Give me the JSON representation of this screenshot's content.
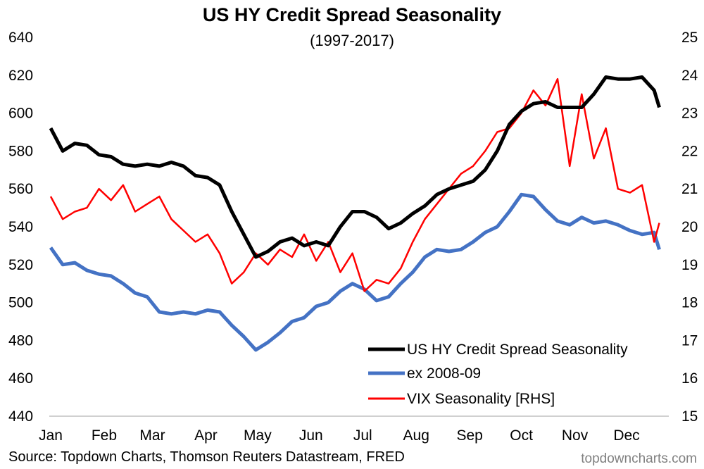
{
  "chart_data": {
    "type": "line",
    "title": "US HY Credit Spread Seasonality",
    "subtitle": "(1997-2017)",
    "source": "Source: Topdown Charts, Thomson Reuters Datastream, FRED",
    "watermark": "topdowncharts.com",
    "x_tick_labels": [
      "Jan",
      "Feb",
      "Mar",
      "Apr",
      "May",
      "Jun",
      "Jul",
      "Aug",
      "Sep",
      "Oct",
      "Nov",
      "Dec"
    ],
    "y_left": {
      "range": [
        440,
        640
      ],
      "ticks": [
        "440",
        "460",
        "480",
        "500",
        "520",
        "540",
        "560",
        "580",
        "600",
        "620",
        "640"
      ]
    },
    "y_right": {
      "range": [
        15,
        25
      ],
      "ticks": [
        "15",
        "16",
        "17",
        "18",
        "19",
        "20",
        "21",
        "22",
        "23",
        "24",
        "25"
      ]
    },
    "grid": false,
    "legend_placement": "bottom-right",
    "x": [
      "01-01",
      "01-08",
      "01-15",
      "01-22",
      "01-29",
      "02-05",
      "02-12",
      "02-19",
      "02-26",
      "03-05",
      "03-12",
      "03-19",
      "03-26",
      "04-02",
      "04-09",
      "04-16",
      "04-23",
      "04-30",
      "05-07",
      "05-14",
      "05-21",
      "05-28",
      "06-04",
      "06-11",
      "06-18",
      "06-25",
      "07-02",
      "07-09",
      "07-16",
      "07-23",
      "07-30",
      "08-06",
      "08-13",
      "08-20",
      "08-27",
      "09-03",
      "09-10",
      "09-17",
      "09-24",
      "10-01",
      "10-08",
      "10-15",
      "10-22",
      "10-29",
      "11-05",
      "11-12",
      "11-19",
      "11-26",
      "12-03",
      "12-10",
      "12-17",
      "12-20"
    ],
    "series": [
      {
        "name": "US HY Credit Spread Seasonality",
        "axis": "left",
        "color": "#000000",
        "values": [
          592,
          580,
          584,
          583,
          578,
          577,
          573,
          572,
          573,
          572,
          574,
          572,
          567,
          566,
          562,
          548,
          536,
          524,
          527,
          532,
          534,
          530,
          532,
          530,
          540,
          548,
          548,
          545,
          539,
          542,
          547,
          551,
          557,
          560,
          562,
          564,
          570,
          580,
          594,
          601,
          605,
          606,
          603,
          603,
          603,
          610,
          619,
          618,
          618,
          619,
          612,
          603
        ]
      },
      {
        "name": "ex 2008-09",
        "axis": "left",
        "color": "#4472C4",
        "values": [
          529,
          520,
          521,
          517,
          515,
          514,
          510,
          505,
          503,
          495,
          494,
          495,
          494,
          496,
          495,
          488,
          482,
          475,
          479,
          484,
          490,
          492,
          498,
          500,
          506,
          510,
          507,
          501,
          503,
          510,
          516,
          524,
          528,
          527,
          528,
          532,
          537,
          540,
          548,
          557,
          556,
          549,
          543,
          541,
          545,
          542,
          543,
          541,
          538,
          536,
          537,
          528
        ]
      },
      {
        "name": "VIX Seasonality [RHS]",
        "axis": "right",
        "color": "#FF0000",
        "values": [
          20.8,
          20.2,
          20.4,
          20.5,
          21.0,
          20.7,
          21.1,
          20.4,
          20.6,
          20.8,
          20.2,
          19.9,
          19.6,
          19.8,
          19.3,
          18.5,
          18.8,
          19.3,
          19.0,
          19.4,
          19.2,
          19.8,
          19.1,
          19.6,
          18.8,
          19.3,
          18.3,
          18.6,
          18.5,
          18.9,
          19.6,
          20.2,
          20.6,
          21.0,
          21.4,
          21.6,
          22.0,
          22.5,
          22.6,
          23.0,
          23.6,
          23.2,
          23.9,
          21.6,
          23.5,
          21.8,
          22.6,
          21.0,
          20.9,
          21.1,
          19.6,
          20.1
        ]
      }
    ]
  }
}
